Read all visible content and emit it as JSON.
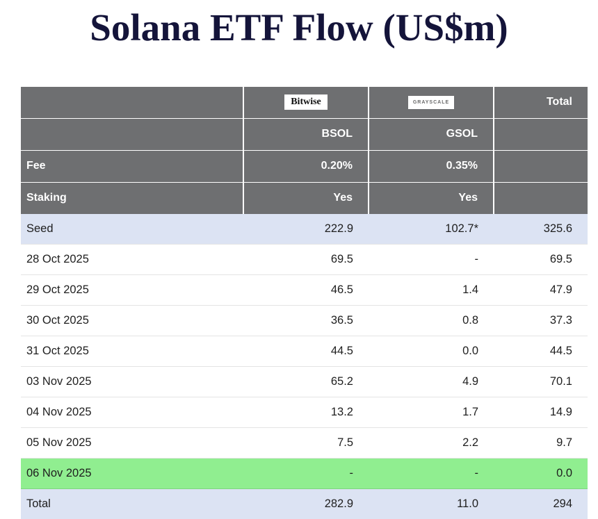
{
  "title": "Solana ETF Flow (US$m)",
  "header": {
    "bitwise_logo": "Bitwise",
    "grayscale_logo": "GRAYSCALE",
    "total": "Total",
    "bsol": "BSOL",
    "gsol": "GSOL",
    "fee_label": "Fee",
    "bitwise_fee": "0.20%",
    "grayscale_fee": "0.35%",
    "staking_label": "Staking",
    "bitwise_staking": "Yes",
    "grayscale_staking": "Yes"
  },
  "rows": [
    {
      "label": "Seed",
      "bsol": "222.9",
      "gsol": "102.7*",
      "total": "325.6",
      "style": "accent"
    },
    {
      "label": "28 Oct 2025",
      "bsol": "69.5",
      "gsol": "-",
      "total": "69.5",
      "style": "plain"
    },
    {
      "label": "29 Oct 2025",
      "bsol": "46.5",
      "gsol": "1.4",
      "total": "47.9",
      "style": "plain"
    },
    {
      "label": "30 Oct 2025",
      "bsol": "36.5",
      "gsol": "0.8",
      "total": "37.3",
      "style": "plain"
    },
    {
      "label": "31 Oct 2025",
      "bsol": "44.5",
      "gsol": "0.0",
      "total": "44.5",
      "style": "plain"
    },
    {
      "label": "03 Nov 2025",
      "bsol": "65.2",
      "gsol": "4.9",
      "total": "70.1",
      "style": "plain"
    },
    {
      "label": "04 Nov 2025",
      "bsol": "13.2",
      "gsol": "1.7",
      "total": "14.9",
      "style": "plain"
    },
    {
      "label": "05 Nov 2025",
      "bsol": "7.5",
      "gsol": "2.2",
      "total": "9.7",
      "style": "plain"
    },
    {
      "label": "06 Nov 2025",
      "bsol": "-",
      "gsol": "-",
      "total": "0.0",
      "style": "highlight"
    },
    {
      "label": "Total",
      "bsol": "282.9",
      "gsol": "11.0",
      "total": "294",
      "style": "accent"
    }
  ],
  "colors": {
    "header_bg": "#6e6f71",
    "accent_row_bg": "#dce3f3",
    "highlight_row_bg": "#90ee90",
    "title": "#14143a"
  },
  "chart_data": {
    "type": "table",
    "title": "Solana ETF Flow (US$m)",
    "columns": [
      "",
      "Bitwise BSOL",
      "Grayscale GSOL",
      "Total"
    ],
    "fees": {
      "BSOL": "0.20%",
      "GSOL": "0.35%"
    },
    "staking": {
      "BSOL": "Yes",
      "GSOL": "Yes"
    },
    "rows": [
      [
        "Seed",
        "222.9",
        "102.7*",
        "325.6"
      ],
      [
        "28 Oct 2025",
        "69.5",
        "-",
        "69.5"
      ],
      [
        "29 Oct 2025",
        "46.5",
        "1.4",
        "47.9"
      ],
      [
        "30 Oct 2025",
        "36.5",
        "0.8",
        "37.3"
      ],
      [
        "31 Oct 2025",
        "44.5",
        "0.0",
        "44.5"
      ],
      [
        "03 Nov 2025",
        "65.2",
        "4.9",
        "70.1"
      ],
      [
        "04 Nov 2025",
        "13.2",
        "1.7",
        "14.9"
      ],
      [
        "05 Nov 2025",
        "7.5",
        "2.2",
        "9.7"
      ],
      [
        "06 Nov 2025",
        "-",
        "-",
        "0.0"
      ],
      [
        "Total",
        "282.9",
        "11.0",
        "294"
      ]
    ],
    "highlighted_row": "06 Nov 2025",
    "accent_rows": [
      "Seed",
      "Total"
    ]
  }
}
